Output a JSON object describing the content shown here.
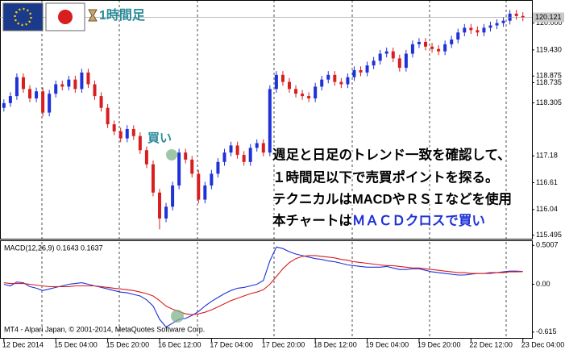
{
  "chart_data": [
    {
      "type": "candlestick",
      "title": "1時間足",
      "last_price": 120.121,
      "marker_label": "買い",
      "annotations": [
        "週足と日足のトレンド一致を確認して、",
        "１時間足以下で売買ポイントを探る。",
        "テクニカルはMACDやＲＳＩなどを使用"
      ],
      "annotation_last": [
        "本チャートは",
        "ＭＡＣＤクロスで買い"
      ],
      "up_color": "#1e32d8",
      "down_color": "#d81e1e",
      "xlim": [
        -0.6,
        81.4
      ],
      "xticks": [
        {
          "value": 0,
          "label": "12 Dec 2014"
        },
        {
          "value": 8,
          "label": "15 Dec 04:00"
        },
        {
          "value": 16,
          "label": "15 Dec 20:00"
        },
        {
          "value": 24,
          "label": "16 Dec 12:00"
        },
        {
          "value": 32,
          "label": "17 Dec 04:00"
        },
        {
          "value": 40,
          "label": "17 Dec 20:00"
        },
        {
          "value": 48,
          "label": "18 Dec 12:00"
        },
        {
          "value": 56,
          "label": "19 Dec 04:00"
        },
        {
          "value": 64,
          "label": "19 Dec 20:00"
        },
        {
          "value": 72,
          "label": "22 Dec 12:00"
        },
        {
          "value": 80,
          "label": "23 Dec 04:00"
        }
      ],
      "ylim": [
        115.42,
        120.49
      ],
      "yticks": [
        {
          "value": 120,
          "label": "120.000"
        },
        {
          "value": 119.43,
          "label": "119.430"
        },
        118.875,
        118.305,
        118.735,
        117.18,
        116.61,
        116.04,
        115.495
      ],
      "open": [
        118.2,
        118.3,
        118.45,
        118.85,
        118.6,
        118.4,
        118.55,
        118.1,
        118.5,
        118.7,
        118.65,
        118.8,
        118.6,
        118.95,
        118.7,
        118.45,
        118.2,
        117.85,
        117.7,
        117.55,
        117.75,
        117.6,
        117.3,
        117.0,
        116.4,
        115.85,
        116.1,
        116.55,
        117.25,
        117.1,
        116.8,
        116.25,
        116.55,
        116.8,
        117.05,
        117.25,
        117.4,
        117.2,
        117.05,
        117.35,
        117.45,
        117.25,
        118.6,
        118.9,
        118.75,
        118.6,
        118.5,
        118.45,
        118.4,
        118.65,
        118.8,
        118.9,
        118.75,
        118.7,
        118.85,
        119.0,
        118.95,
        119.1,
        119.2,
        119.35,
        119.4,
        119.25,
        119.05,
        119.35,
        119.55,
        119.6,
        119.5,
        119.45,
        119.4,
        119.55,
        119.65,
        119.8,
        119.9,
        119.85,
        119.8,
        119.9,
        119.95,
        120.0,
        120.05,
        120.2,
        120.15
      ],
      "high": [
        118.38,
        118.53,
        118.93,
        118.93,
        118.68,
        118.63,
        118.63,
        118.58,
        118.78,
        118.78,
        118.88,
        118.88,
        119.03,
        119.03,
        118.78,
        118.53,
        118.28,
        117.93,
        117.78,
        117.83,
        117.83,
        117.68,
        117.38,
        117.08,
        116.48,
        116.18,
        116.63,
        117.33,
        117.33,
        117.18,
        116.88,
        116.63,
        116.88,
        117.13,
        117.33,
        117.48,
        117.48,
        117.28,
        117.43,
        117.53,
        117.53,
        118.68,
        118.98,
        118.98,
        118.83,
        118.68,
        118.58,
        118.53,
        118.73,
        118.88,
        118.98,
        118.98,
        118.83,
        118.93,
        119.08,
        119.08,
        119.18,
        119.28,
        119.43,
        119.48,
        119.48,
        119.33,
        119.43,
        119.63,
        119.68,
        119.68,
        119.58,
        119.53,
        119.63,
        119.73,
        119.88,
        119.98,
        119.98,
        119.93,
        119.98,
        120.03,
        120.08,
        120.13,
        120.28,
        120.28,
        120.23
      ],
      "low": [
        118.12,
        118.22,
        118.37,
        118.52,
        118.32,
        118.32,
        118.02,
        118.02,
        118.42,
        118.57,
        118.57,
        118.52,
        118.52,
        118.62,
        118.37,
        118.12,
        117.77,
        117.62,
        117.47,
        117.47,
        117.52,
        117.22,
        116.92,
        116.32,
        115.62,
        115.77,
        116.02,
        116.47,
        117.02,
        116.72,
        116.17,
        116.17,
        116.47,
        116.72,
        116.97,
        117.17,
        117.12,
        116.97,
        116.97,
        117.27,
        117.17,
        117.17,
        118.52,
        118.67,
        118.52,
        118.42,
        118.37,
        118.32,
        118.32,
        118.57,
        118.72,
        118.67,
        118.62,
        118.62,
        118.77,
        118.87,
        118.87,
        119.02,
        119.12,
        119.27,
        119.17,
        118.97,
        118.97,
        119.27,
        119.47,
        119.42,
        119.37,
        119.32,
        119.32,
        119.47,
        119.57,
        119.72,
        119.77,
        119.72,
        119.72,
        119.82,
        119.87,
        119.92,
        119.97,
        120.07,
        120.04
      ],
      "close": [
        118.3,
        118.45,
        118.85,
        118.6,
        118.4,
        118.55,
        118.1,
        118.5,
        118.7,
        118.65,
        118.8,
        118.6,
        118.95,
        118.7,
        118.45,
        118.2,
        117.85,
        117.7,
        117.55,
        117.75,
        117.6,
        117.3,
        117.0,
        116.4,
        115.85,
        116.1,
        116.55,
        117.25,
        117.1,
        116.8,
        116.25,
        116.55,
        116.8,
        117.05,
        117.25,
        117.4,
        117.2,
        117.05,
        117.35,
        117.45,
        117.25,
        118.6,
        118.9,
        118.75,
        118.6,
        118.5,
        118.45,
        118.4,
        118.65,
        118.8,
        118.9,
        118.75,
        118.7,
        118.85,
        119.0,
        118.95,
        119.1,
        119.2,
        119.35,
        119.4,
        119.25,
        119.05,
        119.35,
        119.55,
        119.6,
        119.5,
        119.45,
        119.4,
        119.55,
        119.65,
        119.8,
        119.9,
        119.85,
        119.8,
        119.9,
        119.95,
        120.0,
        120.05,
        120.2,
        120.15,
        120.12
      ]
    },
    {
      "type": "line",
      "title": "MACD(12,26,9) 0.1643 0.1637",
      "footer": "MT4 - Alpari Japan, © 2001-2014, MetaQuotes Software Corp.",
      "ylim": [
        -0.7,
        0.566
      ],
      "yticks": [
        0.5007,
        {
          "value": 0,
          "label": "0.00"
        },
        -0.615
      ],
      "series": [
        {
          "color": "#1e32d8",
          "values": [
            0.0,
            -0.02,
            0.03,
            0.02,
            -0.03,
            -0.05,
            -0.08,
            -0.06,
            -0.04,
            -0.02,
            0.0,
            0.01,
            0.02,
            0.0,
            -0.02,
            -0.04,
            -0.06,
            -0.08,
            -0.1,
            -0.11,
            -0.13,
            -0.15,
            -0.2,
            -0.28,
            -0.45,
            -0.55,
            -0.5,
            -0.45,
            -0.44,
            -0.4,
            -0.35,
            -0.28,
            -0.22,
            -0.17,
            -0.12,
            -0.08,
            -0.05,
            -0.04,
            -0.02,
            0.0,
            0.05,
            0.3,
            0.48,
            0.46,
            0.42,
            0.39,
            0.37,
            0.35,
            0.33,
            0.32,
            0.3,
            0.29,
            0.27,
            0.25,
            0.24,
            0.23,
            0.22,
            0.22,
            0.22,
            0.23,
            0.21,
            0.19,
            0.19,
            0.2,
            0.2,
            0.18,
            0.16,
            0.15,
            0.14,
            0.13,
            0.12,
            0.12,
            0.13,
            0.14,
            0.14,
            0.15,
            0.15,
            0.16,
            0.17,
            0.17,
            0.1643
          ]
        },
        {
          "color": "#d81e1e",
          "values": [
            0.02,
            0.01,
            0.01,
            0.01,
            0.0,
            -0.01,
            -0.02,
            -0.03,
            -0.03,
            -0.03,
            -0.03,
            -0.02,
            -0.02,
            -0.02,
            -0.02,
            -0.03,
            -0.04,
            -0.05,
            -0.06,
            -0.07,
            -0.08,
            -0.1,
            -0.12,
            -0.15,
            -0.21,
            -0.28,
            -0.32,
            -0.35,
            -0.38,
            -0.39,
            -0.38,
            -0.36,
            -0.33,
            -0.29,
            -0.25,
            -0.21,
            -0.18,
            -0.15,
            -0.12,
            -0.1,
            -0.07,
            0.0,
            0.1,
            0.2,
            0.28,
            0.33,
            0.36,
            0.37,
            0.37,
            0.36,
            0.35,
            0.34,
            0.32,
            0.31,
            0.29,
            0.28,
            0.27,
            0.26,
            0.25,
            0.24,
            0.24,
            0.23,
            0.22,
            0.21,
            0.21,
            0.2,
            0.19,
            0.18,
            0.17,
            0.16,
            0.15,
            0.15,
            0.14,
            0.14,
            0.14,
            0.14,
            0.15,
            0.15,
            0.16,
            0.16,
            0.1637
          ]
        }
      ]
    }
  ]
}
